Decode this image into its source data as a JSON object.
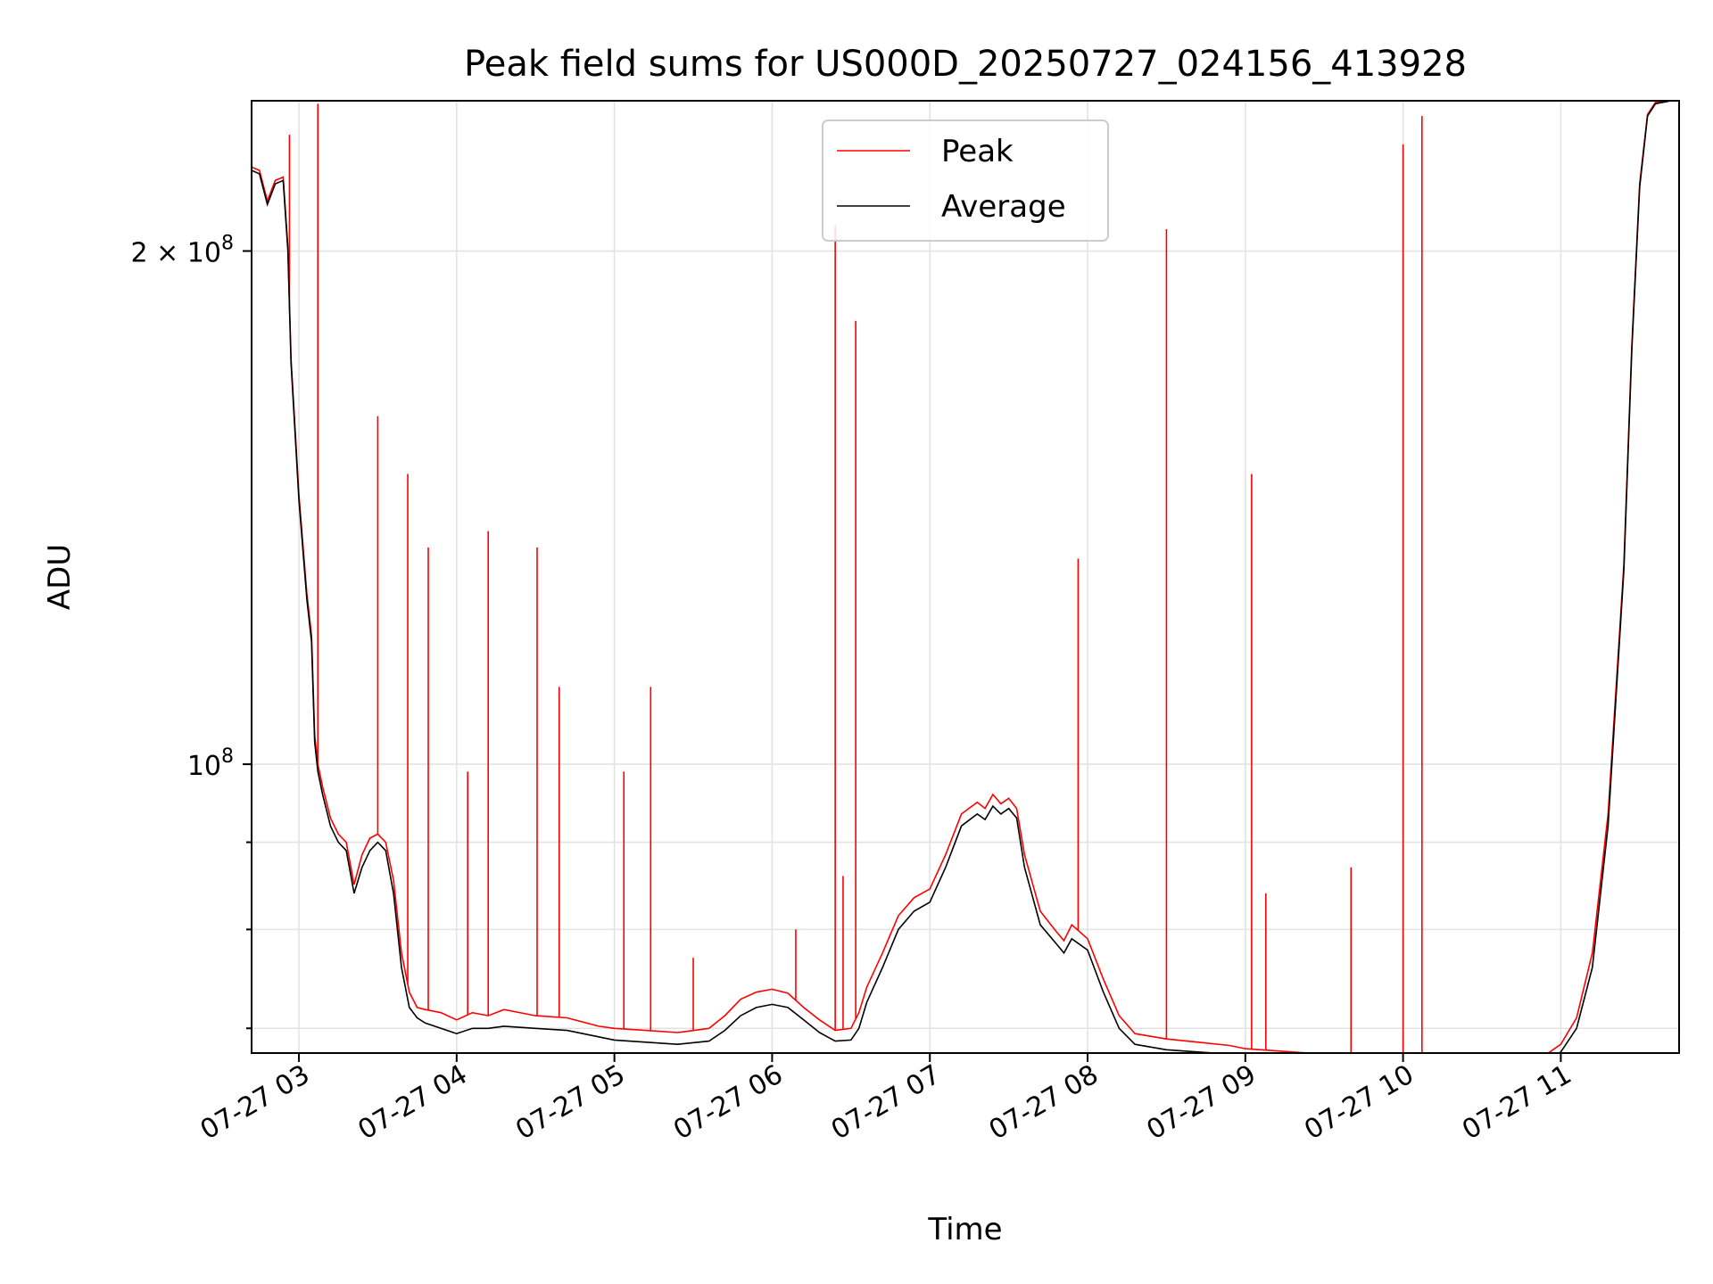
{
  "chart_data": {
    "type": "line",
    "title": "Peak field sums for US000D_20250727_024156_413928",
    "xlabel": "Time",
    "ylabel": "ADU",
    "yscale": "log",
    "xlim": [
      2.7,
      11.75
    ],
    "ylim": [
      67700000,
      245000000
    ],
    "grid": true,
    "legend_placement": "top-center",
    "x_ticks": [
      {
        "value": 3,
        "label": "07-27 03"
      },
      {
        "value": 4,
        "label": "07-27 04"
      },
      {
        "value": 5,
        "label": "07-27 05"
      },
      {
        "value": 6,
        "label": "07-27 06"
      },
      {
        "value": 7,
        "label": "07-27 07"
      },
      {
        "value": 8,
        "label": "07-27 08"
      },
      {
        "value": 9,
        "label": "07-27 09"
      },
      {
        "value": 10,
        "label": "07-27 10"
      },
      {
        "value": 11,
        "label": "07-27 11"
      }
    ],
    "y_major_ticks": [
      {
        "value": 100000000,
        "base": "10",
        "exp": "8",
        "coef": ""
      },
      {
        "value": 200000000,
        "base": "10",
        "exp": "8",
        "coef": "2 × "
      }
    ],
    "y_minor_ticks": [
      70000000,
      80000000,
      90000000
    ],
    "series": [
      {
        "name": "Average",
        "color": "#000000",
        "x": [
          2.7,
          2.75,
          2.8,
          2.85,
          2.9,
          2.93,
          2.95,
          3.0,
          3.05,
          3.08,
          3.1,
          3.12,
          3.15,
          3.2,
          3.25,
          3.3,
          3.35,
          3.4,
          3.45,
          3.5,
          3.55,
          3.6,
          3.65,
          3.7,
          3.75,
          3.8,
          3.9,
          4.0,
          4.1,
          4.2,
          4.3,
          4.5,
          4.7,
          4.9,
          5.0,
          5.2,
          5.4,
          5.6,
          5.7,
          5.8,
          5.9,
          6.0,
          6.1,
          6.2,
          6.3,
          6.4,
          6.5,
          6.55,
          6.6,
          6.7,
          6.8,
          6.9,
          7.0,
          7.1,
          7.2,
          7.3,
          7.35,
          7.4,
          7.45,
          7.5,
          7.55,
          7.6,
          7.7,
          7.8,
          7.85,
          7.9,
          8.0,
          8.1,
          8.2,
          8.3,
          8.5,
          8.7,
          8.9,
          9.0,
          9.2,
          9.4,
          9.6,
          9.8,
          10.0,
          10.2,
          10.4,
          10.6,
          10.8,
          10.9,
          11.0,
          11.1,
          11.2,
          11.3,
          11.4,
          11.45,
          11.5,
          11.55,
          11.6,
          11.7,
          11.75
        ],
        "y": [
          223000000,
          222000000,
          213000000,
          219000000,
          220000000,
          200000000,
          172000000,
          143000000,
          125000000,
          118000000,
          103000000,
          99000000,
          96000000,
          92000000,
          90000000,
          89000000,
          84000000,
          87000000,
          89000000,
          90000000,
          89000000,
          84000000,
          76000000,
          72000000,
          71000000,
          70500000,
          70000000,
          69500000,
          70000000,
          70000000,
          70200000,
          70000000,
          69800000,
          69200000,
          68900000,
          68700000,
          68500000,
          68800000,
          69800000,
          71200000,
          72000000,
          72300000,
          72000000,
          70800000,
          69600000,
          68800000,
          68900000,
          70000000,
          72500000,
          76000000,
          80000000,
          82000000,
          83000000,
          87000000,
          92000000,
          93500000,
          92800000,
          94500000,
          93500000,
          94200000,
          93000000,
          87000000,
          80500000,
          78500000,
          77500000,
          79000000,
          77800000,
          73500000,
          70000000,
          68500000,
          68000000,
          67800000,
          67600000,
          67400000,
          67300000,
          67200000,
          67100000,
          67000000,
          66900000,
          66800000,
          66800000,
          66700000,
          66800000,
          67000000,
          67800000,
          70000000,
          76000000,
          92000000,
          130000000,
          175000000,
          218000000,
          240000000,
          244000000,
          245000000,
          245000000
        ]
      },
      {
        "name": "Peak",
        "color": "#ff0000",
        "x": [
          2.7,
          2.75,
          2.8,
          2.85,
          2.9,
          2.93,
          2.95,
          3.0,
          3.05,
          3.08,
          3.1,
          3.12,
          3.15,
          3.2,
          3.25,
          3.3,
          3.35,
          3.4,
          3.45,
          3.5,
          3.55,
          3.6,
          3.65,
          3.7,
          3.75,
          3.8,
          3.9,
          4.0,
          4.1,
          4.2,
          4.3,
          4.5,
          4.7,
          4.9,
          5.0,
          5.2,
          5.4,
          5.6,
          5.7,
          5.8,
          5.9,
          6.0,
          6.1,
          6.2,
          6.3,
          6.4,
          6.5,
          6.55,
          6.6,
          6.7,
          6.8,
          6.9,
          7.0,
          7.1,
          7.2,
          7.3,
          7.35,
          7.4,
          7.45,
          7.5,
          7.55,
          7.6,
          7.7,
          7.8,
          7.85,
          7.9,
          8.0,
          8.1,
          8.2,
          8.3,
          8.5,
          8.7,
          8.9,
          9.0,
          9.2,
          9.4,
          9.6,
          9.8,
          10.0,
          10.2,
          10.4,
          10.6,
          10.8,
          10.9,
          11.0,
          11.1,
          11.2,
          11.3,
          11.4,
          11.45,
          11.5,
          11.55,
          11.6,
          11.7,
          11.75
        ],
        "y": [
          224000000,
          223000000,
          214000000,
          220000000,
          221000000,
          201000000,
          173000000,
          144000000,
          126000000,
          119000000,
          104000000,
          100000000,
          97000000,
          93000000,
          91000000,
          90000000,
          85000000,
          88500000,
          90500000,
          91000000,
          90000000,
          85500000,
          77500000,
          73500000,
          72000000,
          71800000,
          71500000,
          70800000,
          71500000,
          71200000,
          71800000,
          71200000,
          71000000,
          70200000,
          70000000,
          69800000,
          69600000,
          70000000,
          71200000,
          72800000,
          73500000,
          73800000,
          73400000,
          72000000,
          70800000,
          69800000,
          70000000,
          71500000,
          74000000,
          77500000,
          81500000,
          83500000,
          84500000,
          88500000,
          93500000,
          95000000,
          94200000,
          96000000,
          94800000,
          95500000,
          94200000,
          88500000,
          82000000,
          79800000,
          78800000,
          80500000,
          79000000,
          74800000,
          71200000,
          69500000,
          69000000,
          68700000,
          68400000,
          68100000,
          67900000,
          67700000,
          67600000,
          67400000,
          67200000,
          67100000,
          67000000,
          67000000,
          67100000,
          67500000,
          68500000,
          71000000,
          77500000,
          93500000,
          131000000,
          176000000,
          219000000,
          240500000,
          244500000,
          245000000,
          245000000
        ]
      }
    ],
    "peak_spikes": [
      {
        "x": 2.94,
        "y": 234000000
      },
      {
        "x": 3.12,
        "y": 244000000
      },
      {
        "x": 3.5,
        "y": 160000000
      },
      {
        "x": 3.69,
        "y": 148000000
      },
      {
        "x": 3.82,
        "y": 134000000
      },
      {
        "x": 4.07,
        "y": 99000000
      },
      {
        "x": 4.2,
        "y": 137000000
      },
      {
        "x": 4.51,
        "y": 134000000
      },
      {
        "x": 4.65,
        "y": 111000000
      },
      {
        "x": 5.06,
        "y": 99000000
      },
      {
        "x": 5.23,
        "y": 111000000
      },
      {
        "x": 5.5,
        "y": 77000000
      },
      {
        "x": 6.15,
        "y": 80000000
      },
      {
        "x": 6.4,
        "y": 207000000
      },
      {
        "x": 6.45,
        "y": 86000000
      },
      {
        "x": 6.53,
        "y": 182000000
      },
      {
        "x": 7.94,
        "y": 132000000
      },
      {
        "x": 8.5,
        "y": 206000000
      },
      {
        "x": 9.04,
        "y": 148000000
      },
      {
        "x": 9.13,
        "y": 84000000
      },
      {
        "x": 9.67,
        "y": 87000000
      },
      {
        "x": 10.0,
        "y": 231000000
      },
      {
        "x": 10.12,
        "y": 240000000
      }
    ]
  }
}
